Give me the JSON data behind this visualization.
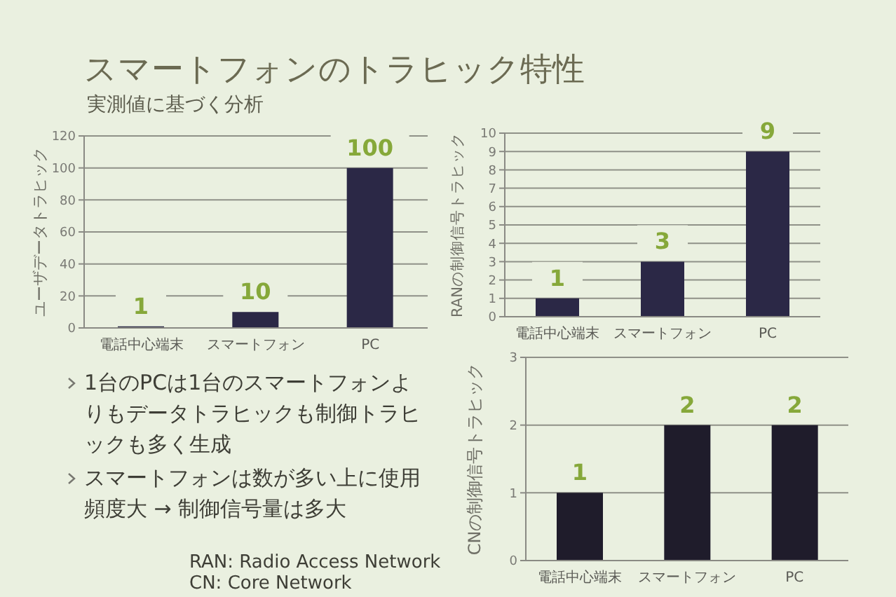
{
  "chart_data": [
    {
      "type": "bar",
      "title": "スマートフォンのトラヒック特性",
      "subtitle": "実測値に基づく分析",
      "annotations": [
        "1台のPCは1台のスマートフォンよりもデータトラヒックも制御トラヒックも多く生成",
        "スマートフォンは数が多い上に使用頻度大 → 制御信号量は多大",
        "RAN: Radio Access Network",
        "CN: Core Network"
      ],
      "categories": [
        "電話中心端末",
        "スマートフォン",
        "PC"
      ],
      "values": [
        1,
        10,
        100
      ],
      "color": "#2b2846",
      "ylabel": "ユーザデータトラヒック",
      "ylim": [
        0,
        120
      ],
      "yticks": [
        0,
        20,
        40,
        60,
        80,
        100,
        120
      ],
      "grid": "y",
      "data_labels": true
    },
    {
      "type": "bar",
      "categories": [
        "電話中心端末",
        "スマートフォン",
        "PC"
      ],
      "values": [
        1,
        3,
        9
      ],
      "color": "#2b2846",
      "ylabel": "RANの制御信号トラヒック",
      "ylim": [
        0,
        10
      ],
      "yticks": [
        0,
        1,
        2,
        3,
        4,
        5,
        6,
        7,
        8,
        9,
        10
      ],
      "grid": "y",
      "data_labels": true
    },
    {
      "type": "bar",
      "categories": [
        "電話中心端末",
        "スマートフォン",
        "PC"
      ],
      "values": [
        1,
        2,
        2
      ],
      "color": "#1f1c2b",
      "ylabel": "CNの制御信号トラヒック",
      "ylim": [
        0,
        3
      ],
      "yticks": [
        0,
        1,
        2,
        3
      ],
      "grid": "y",
      "data_labels": true
    }
  ]
}
